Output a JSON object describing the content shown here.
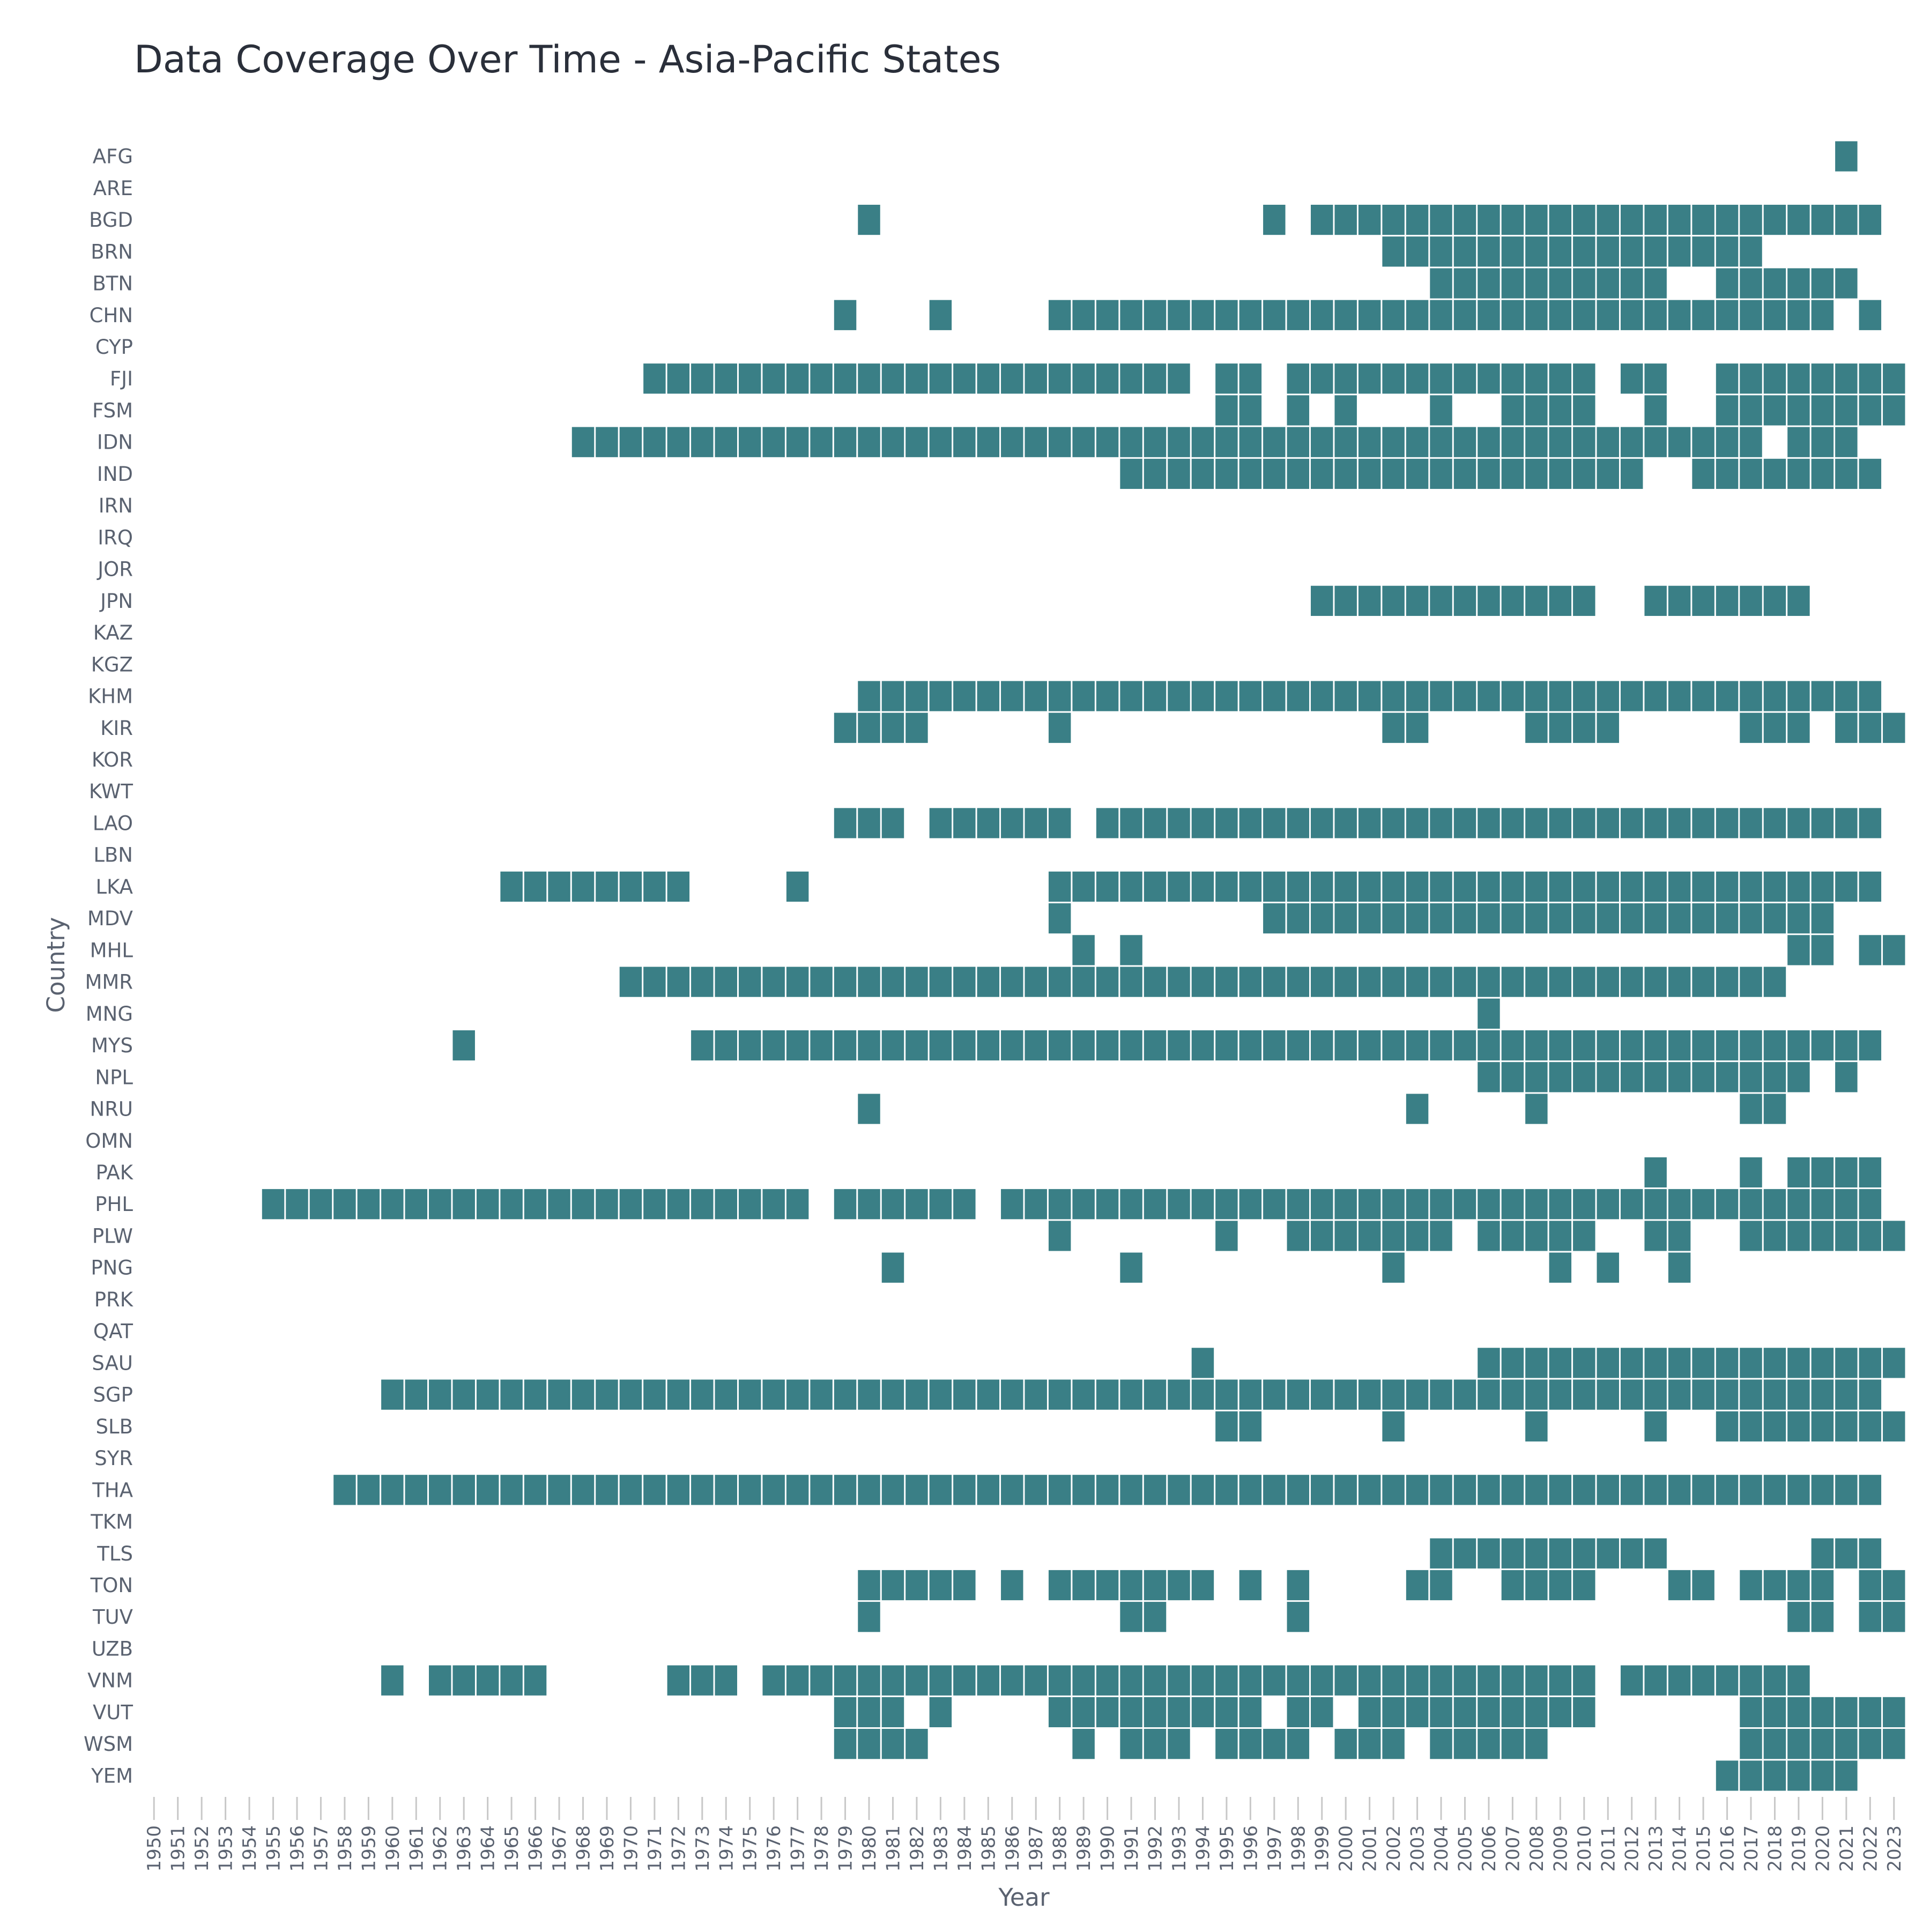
{
  "chart_data": {
    "type": "heatmap",
    "title": "Data Coverage Over Time - Asia-Pacific States",
    "xlabel": "Year",
    "ylabel": "Country",
    "year_range": [
      1950,
      2023
    ],
    "grid": false,
    "legend": "none",
    "colors": {
      "cell": "#3a7f86",
      "cell_border": "#ffffff",
      "tick_mark": "#c8c8c8"
    },
    "countries": [
      "AFG",
      "ARE",
      "BGD",
      "BRN",
      "BTN",
      "CHN",
      "CYP",
      "FJI",
      "FSM",
      "IDN",
      "IND",
      "IRN",
      "IRQ",
      "JOR",
      "JPN",
      "KAZ",
      "KGZ",
      "KHM",
      "KIR",
      "KOR",
      "KWT",
      "LAO",
      "LBN",
      "LKA",
      "MDV",
      "MHL",
      "MMR",
      "MNG",
      "MYS",
      "NPL",
      "NRU",
      "OMN",
      "PAK",
      "PHL",
      "PLW",
      "PNG",
      "PRK",
      "QAT",
      "SAU",
      "SGP",
      "SLB",
      "SYR",
      "THA",
      "TKM",
      "TLS",
      "TON",
      "TUV",
      "UZB",
      "VNM",
      "VUT",
      "WSM",
      "YEM"
    ],
    "coverage": {
      "AFG": [
        [
          2021,
          2021
        ]
      ],
      "ARE": [],
      "BGD": [
        [
          1980,
          1980
        ],
        [
          1997,
          1997
        ],
        [
          1999,
          2022
        ]
      ],
      "BRN": [
        [
          2002,
          2017
        ]
      ],
      "BTN": [
        [
          2004,
          2013
        ],
        [
          2016,
          2021
        ]
      ],
      "CHN": [
        [
          1979,
          1979
        ],
        [
          1983,
          1983
        ],
        [
          1988,
          2020
        ],
        [
          2022,
          2022
        ]
      ],
      "CYP": [],
      "FJI": [
        [
          1971,
          1993
        ],
        [
          1995,
          1996
        ],
        [
          1998,
          2010
        ],
        [
          2012,
          2013
        ],
        [
          2016,
          2023
        ]
      ],
      "FSM": [
        [
          1995,
          1996
        ],
        [
          1998,
          1998
        ],
        [
          2000,
          2000
        ],
        [
          2004,
          2004
        ],
        [
          2007,
          2010
        ],
        [
          2013,
          2013
        ],
        [
          2016,
          2023
        ]
      ],
      "IDN": [
        [
          1968,
          2017
        ],
        [
          2019,
          2021
        ]
      ],
      "IND": [
        [
          1991,
          2012
        ],
        [
          2015,
          2022
        ]
      ],
      "IRN": [],
      "IRQ": [],
      "JOR": [],
      "JPN": [
        [
          1999,
          2010
        ],
        [
          2013,
          2019
        ]
      ],
      "KAZ": [],
      "KGZ": [],
      "KHM": [
        [
          1980,
          2022
        ]
      ],
      "KIR": [
        [
          1979,
          1982
        ],
        [
          1988,
          1988
        ],
        [
          2002,
          2003
        ],
        [
          2008,
          2011
        ],
        [
          2017,
          2019
        ],
        [
          2021,
          2023
        ]
      ],
      "KOR": [],
      "KWT": [],
      "LAO": [
        [
          1979,
          1981
        ],
        [
          1983,
          1988
        ],
        [
          1990,
          2022
        ]
      ],
      "LBN": [],
      "LKA": [
        [
          1965,
          1972
        ],
        [
          1977,
          1977
        ],
        [
          1988,
          2022
        ]
      ],
      "MDV": [
        [
          1988,
          1988
        ],
        [
          1997,
          2020
        ]
      ],
      "MHL": [
        [
          1989,
          1989
        ],
        [
          1991,
          1991
        ],
        [
          2019,
          2020
        ],
        [
          2022,
          2023
        ]
      ],
      "MMR": [
        [
          1970,
          2018
        ]
      ],
      "MNG": [
        [
          2006,
          2006
        ]
      ],
      "MYS": [
        [
          1963,
          1963
        ],
        [
          1973,
          2022
        ]
      ],
      "NPL": [
        [
          2006,
          2019
        ],
        [
          2021,
          2021
        ]
      ],
      "NRU": [
        [
          1980,
          1980
        ],
        [
          2003,
          2003
        ],
        [
          2008,
          2008
        ],
        [
          2017,
          2018
        ]
      ],
      "OMN": [],
      "PAK": [
        [
          2013,
          2013
        ],
        [
          2017,
          2017
        ],
        [
          2019,
          2022
        ]
      ],
      "PHL": [
        [
          1955,
          1977
        ],
        [
          1979,
          1984
        ],
        [
          1986,
          2022
        ]
      ],
      "PLW": [
        [
          1988,
          1988
        ],
        [
          1995,
          1995
        ],
        [
          1998,
          2004
        ],
        [
          2006,
          2010
        ],
        [
          2013,
          2014
        ],
        [
          2017,
          2023
        ]
      ],
      "PNG": [
        [
          1981,
          1981
        ],
        [
          1991,
          1991
        ],
        [
          2002,
          2002
        ],
        [
          2009,
          2009
        ],
        [
          2011,
          2011
        ],
        [
          2014,
          2014
        ]
      ],
      "PRK": [],
      "QAT": [],
      "SAU": [
        [
          1994,
          1994
        ],
        [
          2006,
          2023
        ]
      ],
      "SGP": [
        [
          1960,
          2022
        ]
      ],
      "SLB": [
        [
          1995,
          1996
        ],
        [
          2002,
          2002
        ],
        [
          2008,
          2008
        ],
        [
          2013,
          2013
        ],
        [
          2016,
          2023
        ]
      ],
      "SYR": [],
      "THA": [
        [
          1958,
          2022
        ]
      ],
      "TKM": [],
      "TLS": [
        [
          2004,
          2013
        ],
        [
          2020,
          2022
        ]
      ],
      "TON": [
        [
          1980,
          1984
        ],
        [
          1986,
          1986
        ],
        [
          1988,
          1994
        ],
        [
          1996,
          1996
        ],
        [
          1998,
          1998
        ],
        [
          2003,
          2004
        ],
        [
          2007,
          2010
        ],
        [
          2014,
          2015
        ],
        [
          2017,
          2020
        ],
        [
          2022,
          2023
        ]
      ],
      "TUV": [
        [
          1980,
          1980
        ],
        [
          1991,
          1992
        ],
        [
          1998,
          1998
        ],
        [
          2019,
          2020
        ],
        [
          2022,
          2023
        ]
      ],
      "UZB": [],
      "VNM": [
        [
          1960,
          1960
        ],
        [
          1962,
          1966
        ],
        [
          1972,
          1974
        ],
        [
          1976,
          2010
        ],
        [
          2012,
          2019
        ]
      ],
      "VUT": [
        [
          1979,
          1981
        ],
        [
          1983,
          1983
        ],
        [
          1988,
          1996
        ],
        [
          1998,
          1999
        ],
        [
          2001,
          2010
        ],
        [
          2017,
          2023
        ]
      ],
      "WSM": [
        [
          1979,
          1982
        ],
        [
          1989,
          1989
        ],
        [
          1991,
          1993
        ],
        [
          1995,
          1998
        ],
        [
          2000,
          2002
        ],
        [
          2004,
          2008
        ],
        [
          2017,
          2023
        ]
      ],
      "YEM": [
        [
          2016,
          2021
        ]
      ]
    }
  }
}
